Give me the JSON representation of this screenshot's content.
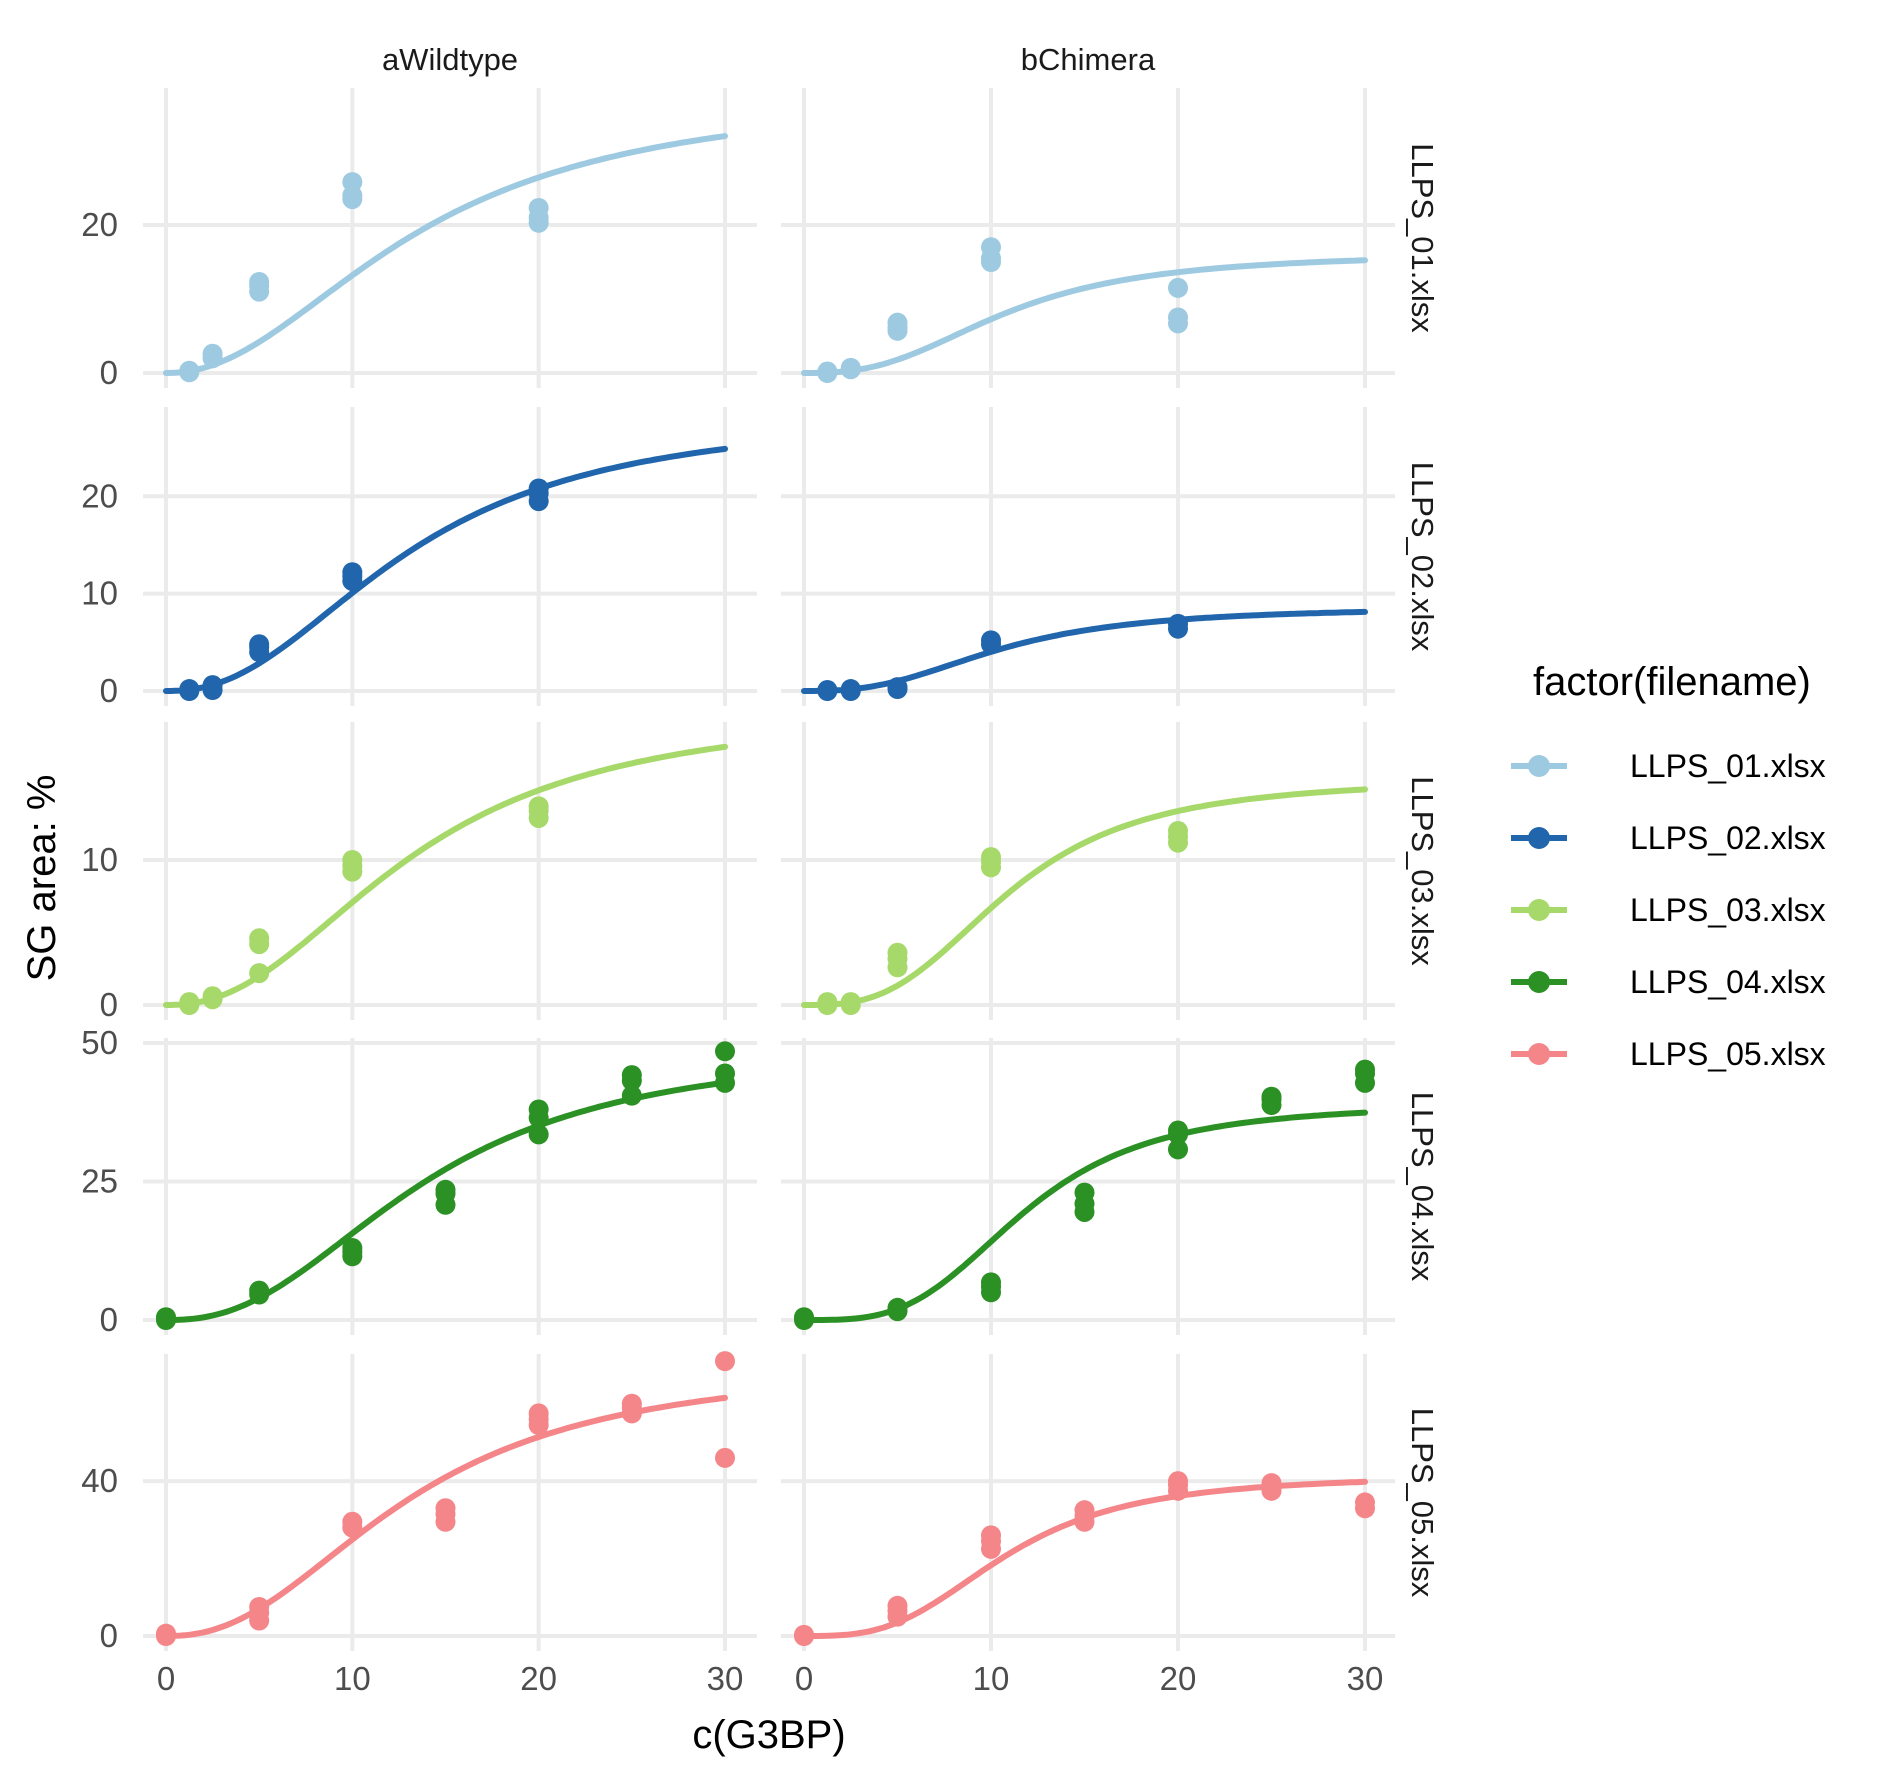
{
  "chart_data": {
    "type": "scatter",
    "xlabel": "c(G3BP)",
    "ylabel": "SG area: %",
    "columns": [
      "aWildtype",
      "bChimera"
    ],
    "legend": {
      "title": "factor(filename)",
      "placement": "right",
      "entries": [
        "LLPS_01.xlsx",
        "LLPS_02.xlsx",
        "LLPS_03.xlsx",
        "LLPS_04.xlsx",
        "LLPS_05.xlsx"
      ]
    },
    "xlim": [
      0,
      30
    ],
    "x_ticks": [
      "0",
      "10",
      "20",
      "30"
    ],
    "grid": true,
    "rows": [
      {
        "name": "LLPS_01.xlsx",
        "color": "#9ecae1",
        "ylim": [
          0,
          35
        ],
        "y_ticks": [
          0,
          20
        ],
        "panels": [
          {
            "points": [
              [
                1.25,
                0.1
              ],
              [
                1.25,
                0.3
              ],
              [
                2.5,
                2.0
              ],
              [
                2.5,
                2.6
              ],
              [
                5,
                11.0
              ],
              [
                5,
                11.8
              ],
              [
                5,
                12.3
              ],
              [
                10,
                23.5
              ],
              [
                10,
                24.0
              ],
              [
                10,
                25.8
              ],
              [
                20,
                20.3
              ],
              [
                20,
                21.0
              ],
              [
                20,
                22.3
              ]
            ],
            "fit": {
              "bottom": 0,
              "top": 38,
              "ec50": 13.5,
              "hill": 2.1
            }
          },
          {
            "points": [
              [
                1.25,
                0.0
              ],
              [
                1.25,
                0.2
              ],
              [
                2.5,
                0.5
              ],
              [
                2.5,
                0.7
              ],
              [
                5,
                5.7
              ],
              [
                5,
                6.2
              ],
              [
                5,
                6.8
              ],
              [
                10,
                15.0
              ],
              [
                10,
                15.5
              ],
              [
                10,
                17.0
              ],
              [
                20,
                6.7
              ],
              [
                20,
                7.5
              ],
              [
                20,
                11.5
              ]
            ],
            "fit": {
              "bottom": 0,
              "top": 16.2,
              "ec50": 10.8,
              "hill": 2.7
            }
          }
        ]
      },
      {
        "name": "LLPS_02.xlsx",
        "color": "#2166ac",
        "ylim": [
          0,
          26.5
        ],
        "y_ticks": [
          0,
          10,
          20
        ],
        "panels": [
          {
            "points": [
              [
                1.25,
                0.0
              ],
              [
                1.25,
                0.2
              ],
              [
                2.5,
                0.1
              ],
              [
                2.5,
                0.6
              ],
              [
                5,
                4.0
              ],
              [
                5,
                4.5
              ],
              [
                5,
                4.8
              ],
              [
                10,
                11.3
              ],
              [
                10,
                11.8
              ],
              [
                10,
                12.2
              ],
              [
                20,
                19.5
              ],
              [
                20,
                20.3
              ],
              [
                20,
                20.8
              ]
            ],
            "fit": {
              "bottom": 0,
              "top": 28.5,
              "ec50": 13.0,
              "hill": 2.3
            }
          },
          {
            "points": [
              [
                1.25,
                0.0
              ],
              [
                1.25,
                0.1
              ],
              [
                2.5,
                0.0
              ],
              [
                2.5,
                0.2
              ],
              [
                5,
                0.2
              ],
              [
                5,
                0.4
              ],
              [
                10,
                4.8
              ],
              [
                10,
                5.2
              ],
              [
                20,
                6.4
              ],
              [
                20,
                6.9
              ]
            ],
            "fit": {
              "bottom": 0,
              "top": 8.6,
              "ec50": 10.5,
              "hill": 2.7
            }
          }
        ]
      },
      {
        "name": "LLPS_03.xlsx",
        "color": "#a6d96a",
        "ylim": [
          0,
          18
        ],
        "y_ticks": [
          0,
          10
        ],
        "panels": [
          {
            "points": [
              [
                1.25,
                0.0
              ],
              [
                1.25,
                0.2
              ],
              [
                2.5,
                0.4
              ],
              [
                2.5,
                0.6
              ],
              [
                5,
                2.2
              ],
              [
                5,
                4.2
              ],
              [
                5,
                4.6
              ],
              [
                10,
                9.2
              ],
              [
                10,
                9.6
              ],
              [
                10,
                10.0
              ],
              [
                20,
                12.9
              ],
              [
                20,
                13.4
              ],
              [
                20,
                13.7
              ]
            ],
            "fit": {
              "bottom": 0,
              "top": 20.5,
              "ec50": 13.2,
              "hill": 2.3
            }
          },
          {
            "points": [
              [
                1.25,
                0.0
              ],
              [
                1.25,
                0.2
              ],
              [
                2.5,
                0.0
              ],
              [
                2.5,
                0.2
              ],
              [
                5,
                2.6
              ],
              [
                5,
                3.2
              ],
              [
                5,
                3.6
              ],
              [
                10,
                9.5
              ],
              [
                10,
                9.9
              ],
              [
                10,
                10.2
              ],
              [
                20,
                11.2
              ],
              [
                20,
                11.6
              ],
              [
                20,
                12.0
              ]
            ],
            "fit": {
              "bottom": 0,
              "top": 15.6,
              "ec50": 11.0,
              "hill": 3.0
            }
          }
        ]
      },
      {
        "name": "LLPS_04.xlsx",
        "color": "#2b9124",
        "ylim": [
          0,
          50
        ],
        "y_ticks": [
          0,
          25,
          50
        ],
        "panels": [
          {
            "points": [
              [
                0,
                0.0
              ],
              [
                0,
                0.5
              ],
              [
                5,
                4.6
              ],
              [
                5,
                5.3
              ],
              [
                10,
                11.5
              ],
              [
                10,
                12.3
              ],
              [
                10,
                13.0
              ],
              [
                15,
                20.8
              ],
              [
                15,
                22.8
              ],
              [
                15,
                23.5
              ],
              [
                20,
                33.5
              ],
              [
                20,
                36.5
              ],
              [
                20,
                38.0
              ],
              [
                25,
                40.5
              ],
              [
                25,
                43.2
              ],
              [
                25,
                44.2
              ],
              [
                30,
                42.8
              ],
              [
                30,
                44.5
              ],
              [
                30,
                48.5
              ]
            ],
            "fit": {
              "bottom": 0,
              "top": 49.5,
              "ec50": 13.8,
              "hill": 2.4
            }
          },
          {
            "points": [
              [
                0,
                0.0
              ],
              [
                0,
                0.5
              ],
              [
                5,
                1.6
              ],
              [
                5,
                2.2
              ],
              [
                10,
                5.0
              ],
              [
                10,
                6.0
              ],
              [
                10,
                6.8
              ],
              [
                15,
                19.5
              ],
              [
                15,
                21.0
              ],
              [
                15,
                23.0
              ],
              [
                20,
                30.8
              ],
              [
                20,
                33.5
              ],
              [
                20,
                34.2
              ],
              [
                25,
                38.8
              ],
              [
                25,
                39.8
              ],
              [
                25,
                40.3
              ],
              [
                30,
                42.8
              ],
              [
                30,
                44.5
              ],
              [
                30,
                45.2
              ]
            ],
            "fit": {
              "bottom": 0,
              "top": 39.0,
              "ec50": 11.8,
              "hill": 3.4
            }
          }
        ]
      },
      {
        "name": "LLPS_05.xlsx",
        "color": "#f4868a",
        "ylim": [
          0,
          70
        ],
        "y_ticks": [
          0,
          40
        ],
        "panels": [
          {
            "points": [
              [
                0,
                0.0
              ],
              [
                0,
                0.6
              ],
              [
                5,
                4.0
              ],
              [
                5,
                6.0
              ],
              [
                5,
                7.5
              ],
              [
                10,
                28.0
              ],
              [
                10,
                29.5
              ],
              [
                15,
                29.5
              ],
              [
                15,
                31.5
              ],
              [
                15,
                33.0
              ],
              [
                20,
                54.5
              ],
              [
                20,
                56.0
              ],
              [
                20,
                57.5
              ],
              [
                25,
                57.5
              ],
              [
                25,
                59.0
              ],
              [
                25,
                60.0
              ],
              [
                30,
                46.0
              ],
              [
                30,
                71.0
              ]
            ],
            "fit": {
              "bottom": 0,
              "top": 70.5,
              "ec50": 13.0,
              "hill": 2.3
            }
          },
          {
            "points": [
              [
                0,
                0.0
              ],
              [
                0,
                0.3
              ],
              [
                5,
                5.0
              ],
              [
                5,
                6.5
              ],
              [
                5,
                7.8
              ],
              [
                10,
                22.5
              ],
              [
                10,
                24.5
              ],
              [
                10,
                26.0
              ],
              [
                15,
                29.5
              ],
              [
                15,
                31.0
              ],
              [
                15,
                32.5
              ],
              [
                20,
                37.5
              ],
              [
                20,
                39.0
              ],
              [
                20,
                40.0
              ],
              [
                25,
                37.5
              ],
              [
                25,
                38.5
              ],
              [
                25,
                39.5
              ],
              [
                30,
                33.0
              ],
              [
                30,
                34.5
              ]
            ],
            "fit": {
              "bottom": 0,
              "top": 41.5,
              "ec50": 10.8,
              "hill": 3.1
            }
          }
        ]
      }
    ]
  }
}
